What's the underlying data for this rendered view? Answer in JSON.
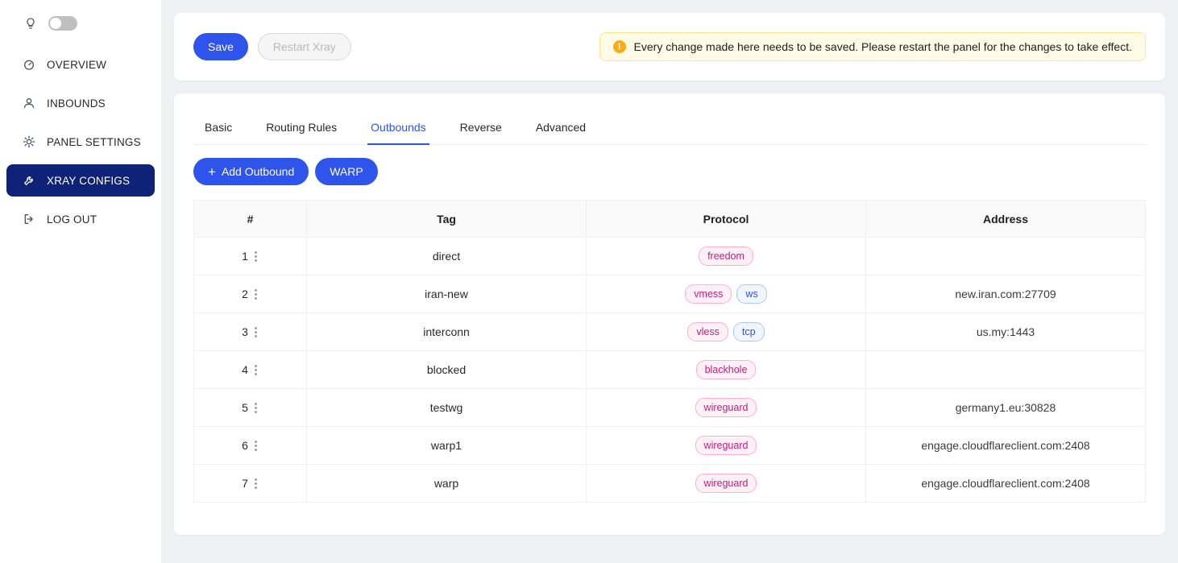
{
  "colors": {
    "primary": "#2f54eb",
    "sidebar_active_bg": "#0e2377",
    "alert_bg": "#fffbe6",
    "alert_border": "#ffe58f",
    "warning": "#faad14",
    "tag_magenta": "#c41d7f",
    "tag_blue": "#2f54eb"
  },
  "sidebar": {
    "theme_toggle": {
      "icon": "lightbulb-icon",
      "state": "off"
    },
    "items": [
      {
        "id": "overview",
        "label": "OVERVIEW",
        "icon": "dashboard-icon",
        "active": false
      },
      {
        "id": "inbounds",
        "label": "INBOUNDS",
        "icon": "user-icon",
        "active": false
      },
      {
        "id": "panel-settings",
        "label": "PANEL SETTINGS",
        "icon": "gear-icon",
        "active": false
      },
      {
        "id": "xray-configs",
        "label": "XRAY CONFIGS",
        "icon": "wrench-icon",
        "active": true
      },
      {
        "id": "log-out",
        "label": "LOG OUT",
        "icon": "logout-icon",
        "active": false
      }
    ]
  },
  "toolbar": {
    "save_label": "Save",
    "restart_label": "Restart Xray",
    "alert_text": "Every change made here needs to be saved. Please restart the panel for the changes to take effect."
  },
  "tabs": [
    {
      "id": "basic",
      "label": "Basic",
      "active": false
    },
    {
      "id": "routing-rules",
      "label": "Routing Rules",
      "active": false
    },
    {
      "id": "outbounds",
      "label": "Outbounds",
      "active": true
    },
    {
      "id": "reverse",
      "label": "Reverse",
      "active": false
    },
    {
      "id": "advanced",
      "label": "Advanced",
      "active": false
    }
  ],
  "actions": {
    "plus_glyph": "+",
    "add_outbound_label": "Add Outbound",
    "warp_label": "WARP"
  },
  "outbounds_table": {
    "headers": [
      "#",
      "Tag",
      "Protocol",
      "Address"
    ],
    "rows": [
      {
        "num": "1",
        "tag": "direct",
        "badges": [
          {
            "label": "freedom",
            "color": "magenta"
          }
        ],
        "address": ""
      },
      {
        "num": "2",
        "tag": "iran-new",
        "badges": [
          {
            "label": "vmess",
            "color": "magenta"
          },
          {
            "label": "ws",
            "color": "blue"
          }
        ],
        "address": "new.iran.com:27709"
      },
      {
        "num": "3",
        "tag": "interconn",
        "badges": [
          {
            "label": "vless",
            "color": "magenta"
          },
          {
            "label": "tcp",
            "color": "blue"
          }
        ],
        "address": "us.my:1443"
      },
      {
        "num": "4",
        "tag": "blocked",
        "badges": [
          {
            "label": "blackhole",
            "color": "magenta"
          }
        ],
        "address": ""
      },
      {
        "num": "5",
        "tag": "testwg",
        "badges": [
          {
            "label": "wireguard",
            "color": "magenta"
          }
        ],
        "address": "germany1.eu:30828"
      },
      {
        "num": "6",
        "tag": "warp1",
        "badges": [
          {
            "label": "wireguard",
            "color": "magenta"
          }
        ],
        "address": "engage.cloudflareclient.com:2408"
      },
      {
        "num": "7",
        "tag": "warp",
        "badges": [
          {
            "label": "wireguard",
            "color": "magenta"
          }
        ],
        "address": "engage.cloudflareclient.com:2408"
      }
    ]
  }
}
